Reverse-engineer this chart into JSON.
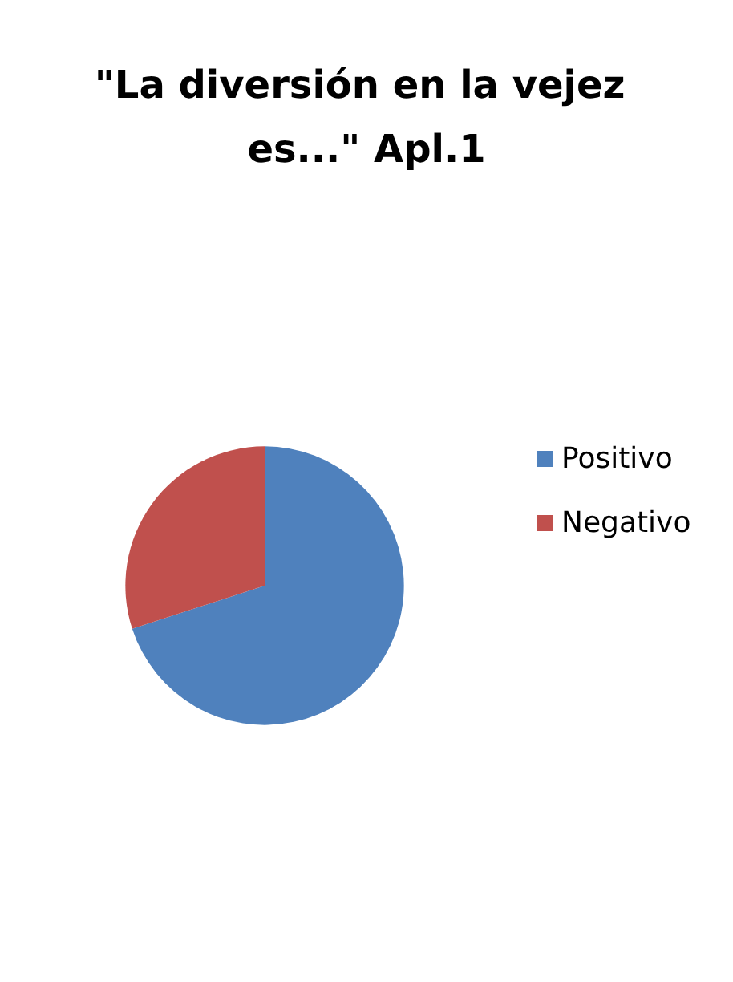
{
  "chart_data": {
    "type": "pie",
    "title": "\"La diversión en la vejez es...\" Apl.1",
    "categories": [
      "Positivo",
      "Negativo"
    ],
    "values": [
      70,
      30
    ],
    "colors": [
      "#4f81bd",
      "#c0504d"
    ],
    "legend": "right"
  }
}
